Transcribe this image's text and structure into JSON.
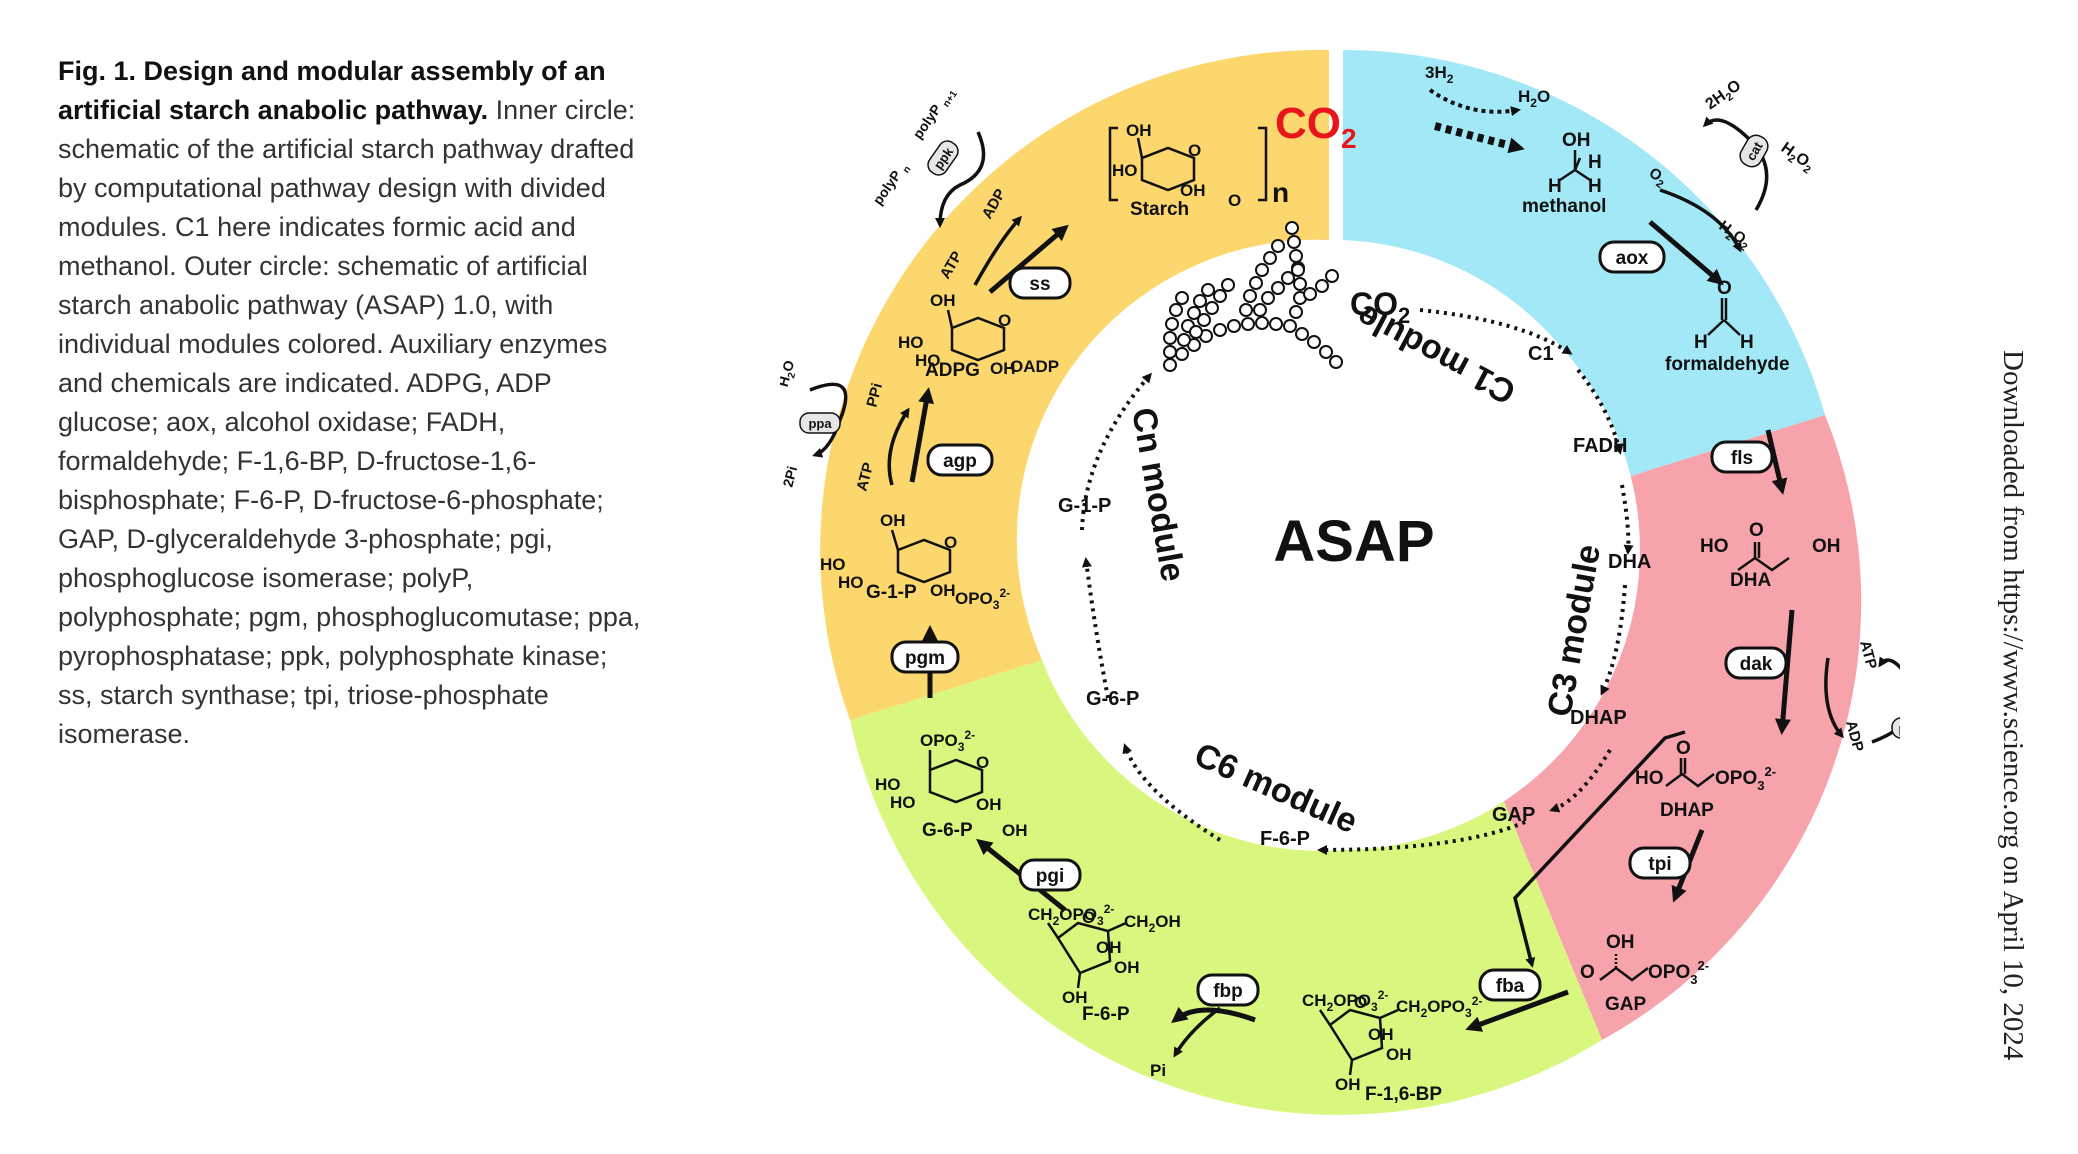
{
  "caption": {
    "fig_label": "Fig. 1. Design and modular assembly of an artificial starch anabolic pathway.",
    "body": "Inner circle: schematic of the artificial starch pathway drafted by computational pathway design with divided modules. C1 here indicates formic acid and methanol. Outer circle: schematic of artificial starch anabolic pathway (ASAP) 1.0, with individual modules colored. Auxiliary enzymes and chemicals are indicated. ADPG, ADP glucose; aox, alcohol oxidase; FADH, formaldehyde; F-1,6-BP, D-fructose-1,6-bisphosphate; F-6-P, D-fructose-6-phosphate; GAP, D-glyceraldehyde 3-phosphate; pgi, phosphoglucose isomerase; polyP, polyphosphate; pgm, phosphoglucomutase; ppa, pyrophosphatase; ppk, polyphosphate kinase; ss, starch synthase; tpi, triose-phosphate isomerase."
  },
  "side_note": "Downloaded from https://www.science.org on April 10, 2024",
  "colors": {
    "c1_segment": "#a3e8f7",
    "c3_segment": "#f6a3ac",
    "c6_segment": "#d9f77f",
    "cn_segment": "#fbd76e",
    "co2_red": "#e8161b",
    "ink": "#111111"
  },
  "center": {
    "title": "ASAP",
    "modules": {
      "c1": "C1 module",
      "c3": "C3 module",
      "c6": "C6 module",
      "cn": "Cn module"
    },
    "nodes": {
      "co2": "CO",
      "co2_sub": "2",
      "c1": "C1",
      "fadh": "FADH",
      "dha": "DHA",
      "dhap": "DHAP",
      "gap": "GAP",
      "f6p": "F-6-P",
      "g6p": "G-6-P",
      "g1p": "G-1-P"
    }
  },
  "outer": {
    "co2": "CO",
    "co2_sub": "2",
    "h2_reagent": "3H",
    "h2_sub": "2",
    "h2o_product": "H",
    "h2o_product_sub": "2",
    "h2o_product_tail": "O",
    "methanol": "methanol",
    "formaldehyde": "formaldehyde",
    "dha": "DHA",
    "dhap": "DHAP",
    "gap": "GAP",
    "f16bp": "F-1,6-BP",
    "f6p": "F-6-P",
    "g6p": "G-6-P",
    "g1p": "G-1-P",
    "adpg": "ADPG",
    "starch": "Starch",
    "repeat_n": "n",
    "enzymes": {
      "aox": "aox",
      "cat": "cat",
      "fls": "fls",
      "dak": "dak",
      "ppk_c3": "ppk",
      "tpi": "tpi",
      "fba": "fba",
      "fbp": "fbp",
      "pgi": "pgi",
      "pgm": "pgm",
      "agp": "agp",
      "ppa": "ppa",
      "ss": "ss",
      "ppk_cn": "ppk"
    },
    "cofactors": {
      "two_h2o": "2H",
      "two_h2o_sub": "2",
      "two_h2o_tail": "O",
      "h2o2": "H",
      "h2o2_sub": "2",
      "h2o2_mid": "O",
      "h2o2_sub2": "2",
      "o2": "O",
      "o2_sub": "2",
      "atp": "ATP",
      "adp": "ADP",
      "polyp": "polyP",
      "polyp_n": "n",
      "polyp_n1": "n+1",
      "pi": "Pi",
      "ppi": "PPi",
      "two_pi": "2Pi",
      "h2o": "H",
      "h2o_sub": "2",
      "h2o_tail": "O"
    },
    "groups": {
      "ho": "HO",
      "oh": "OH",
      "o": "O",
      "h": "H",
      "c": "C",
      "oadp": "OADP",
      "opo3": "OPO",
      "opo3_sub": "3",
      "charge": "2-",
      "ch2opo3": "CH",
      "ch2_sub": "2",
      "ch2_mid": "OPO",
      "ch2oh": "CH",
      "ch2oh_tail": "OH"
    }
  }
}
